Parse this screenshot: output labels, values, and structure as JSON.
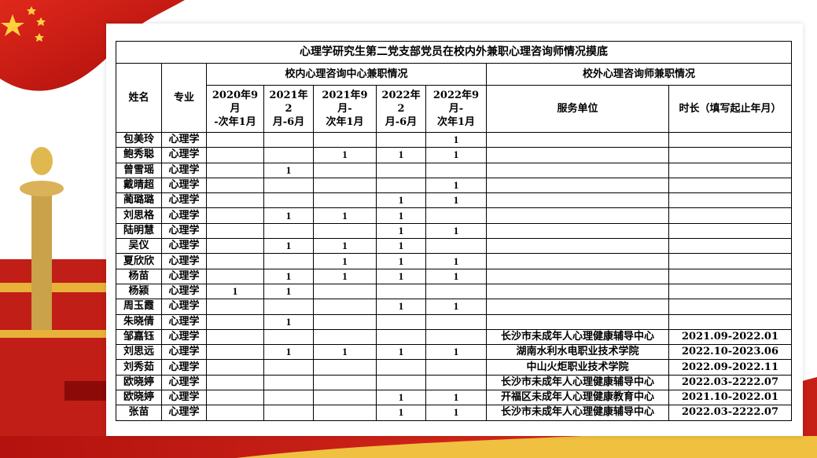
{
  "table": {
    "title": "心理学研究生第二党支部党员在校内外兼职心理咨询师情况摸底",
    "headers": {
      "name": "姓名",
      "major": "专业",
      "internal_group": "校内心理咨询中心兼职情况",
      "external_group": "校外心理咨询师兼职情况",
      "columns": [
        "2020年9月\n-次年1月",
        "2021年2\n月-6月",
        "2021年9月-\n次年1月",
        "2022年2\n月-6月",
        "2022年9月-\n次年1月",
        "服务单位",
        "时长（填写起止年月）"
      ]
    },
    "rows": [
      [
        "包美玲",
        "心理学",
        null,
        null,
        null,
        null,
        "1",
        null,
        null
      ],
      [
        "鲍秀聪",
        "心理学",
        null,
        null,
        "1",
        "1",
        "1",
        null,
        null
      ],
      [
        "曾雪瑶",
        "心理学",
        null,
        "1",
        null,
        null,
        null,
        null,
        null
      ],
      [
        "戴晴超",
        "心理学",
        null,
        null,
        null,
        null,
        "1",
        null,
        null
      ],
      [
        "蔺璐璐",
        "心理学",
        null,
        null,
        null,
        "1",
        "1",
        null,
        null
      ],
      [
        "刘思格",
        "心理学",
        null,
        "1",
        "1",
        "1",
        null,
        null,
        null
      ],
      [
        "陆明慧",
        "心理学",
        null,
        null,
        null,
        "1",
        "1",
        null,
        null
      ],
      [
        "吴仪",
        "心理学",
        null,
        "1",
        "1",
        "1",
        null,
        null,
        null
      ],
      [
        "夏欣欣",
        "心理学",
        null,
        null,
        "1",
        "1",
        "1",
        null,
        null
      ],
      [
        "杨苗",
        "心理学",
        null,
        "1",
        "1",
        "1",
        "1",
        null,
        null
      ],
      [
        "杨颍",
        "心理学",
        "1",
        "1",
        null,
        null,
        null,
        null,
        null
      ],
      [
        "周玉霞",
        "心理学",
        null,
        null,
        null,
        "1",
        "1",
        null,
        null
      ],
      [
        "朱晓倩",
        "心理学",
        null,
        "1",
        null,
        null,
        null,
        null,
        null
      ],
      [
        "邹嘉钰",
        "心理学",
        null,
        null,
        null,
        null,
        null,
        "长沙市未成年人心理健康辅导中心",
        "2021.09-2022.01"
      ],
      [
        "刘思远",
        "心理学",
        null,
        "1",
        "1",
        "1",
        "1",
        "湖南水利水电职业技术学院",
        "2022.10-2023.06"
      ],
      [
        "刘秀茹",
        "心理学",
        null,
        null,
        null,
        null,
        null,
        "中山火炬职业技术学院",
        "2022.09-2022.11"
      ],
      [
        "欧晓婷",
        "心理学",
        null,
        null,
        null,
        null,
        null,
        "长沙市未成年人心理健康辅导中心",
        "2022.03-2222.07"
      ],
      [
        "欧晓婷",
        "心理学",
        null,
        null,
        null,
        "1",
        "1",
        "开福区未成年人心理健康教育中心",
        "2021.10-2022.01"
      ],
      [
        "张苗",
        "心理学",
        null,
        null,
        null,
        "1",
        "1",
        "长沙市未成年人心理健康辅导中心",
        "2022.03-2222.07"
      ]
    ]
  }
}
